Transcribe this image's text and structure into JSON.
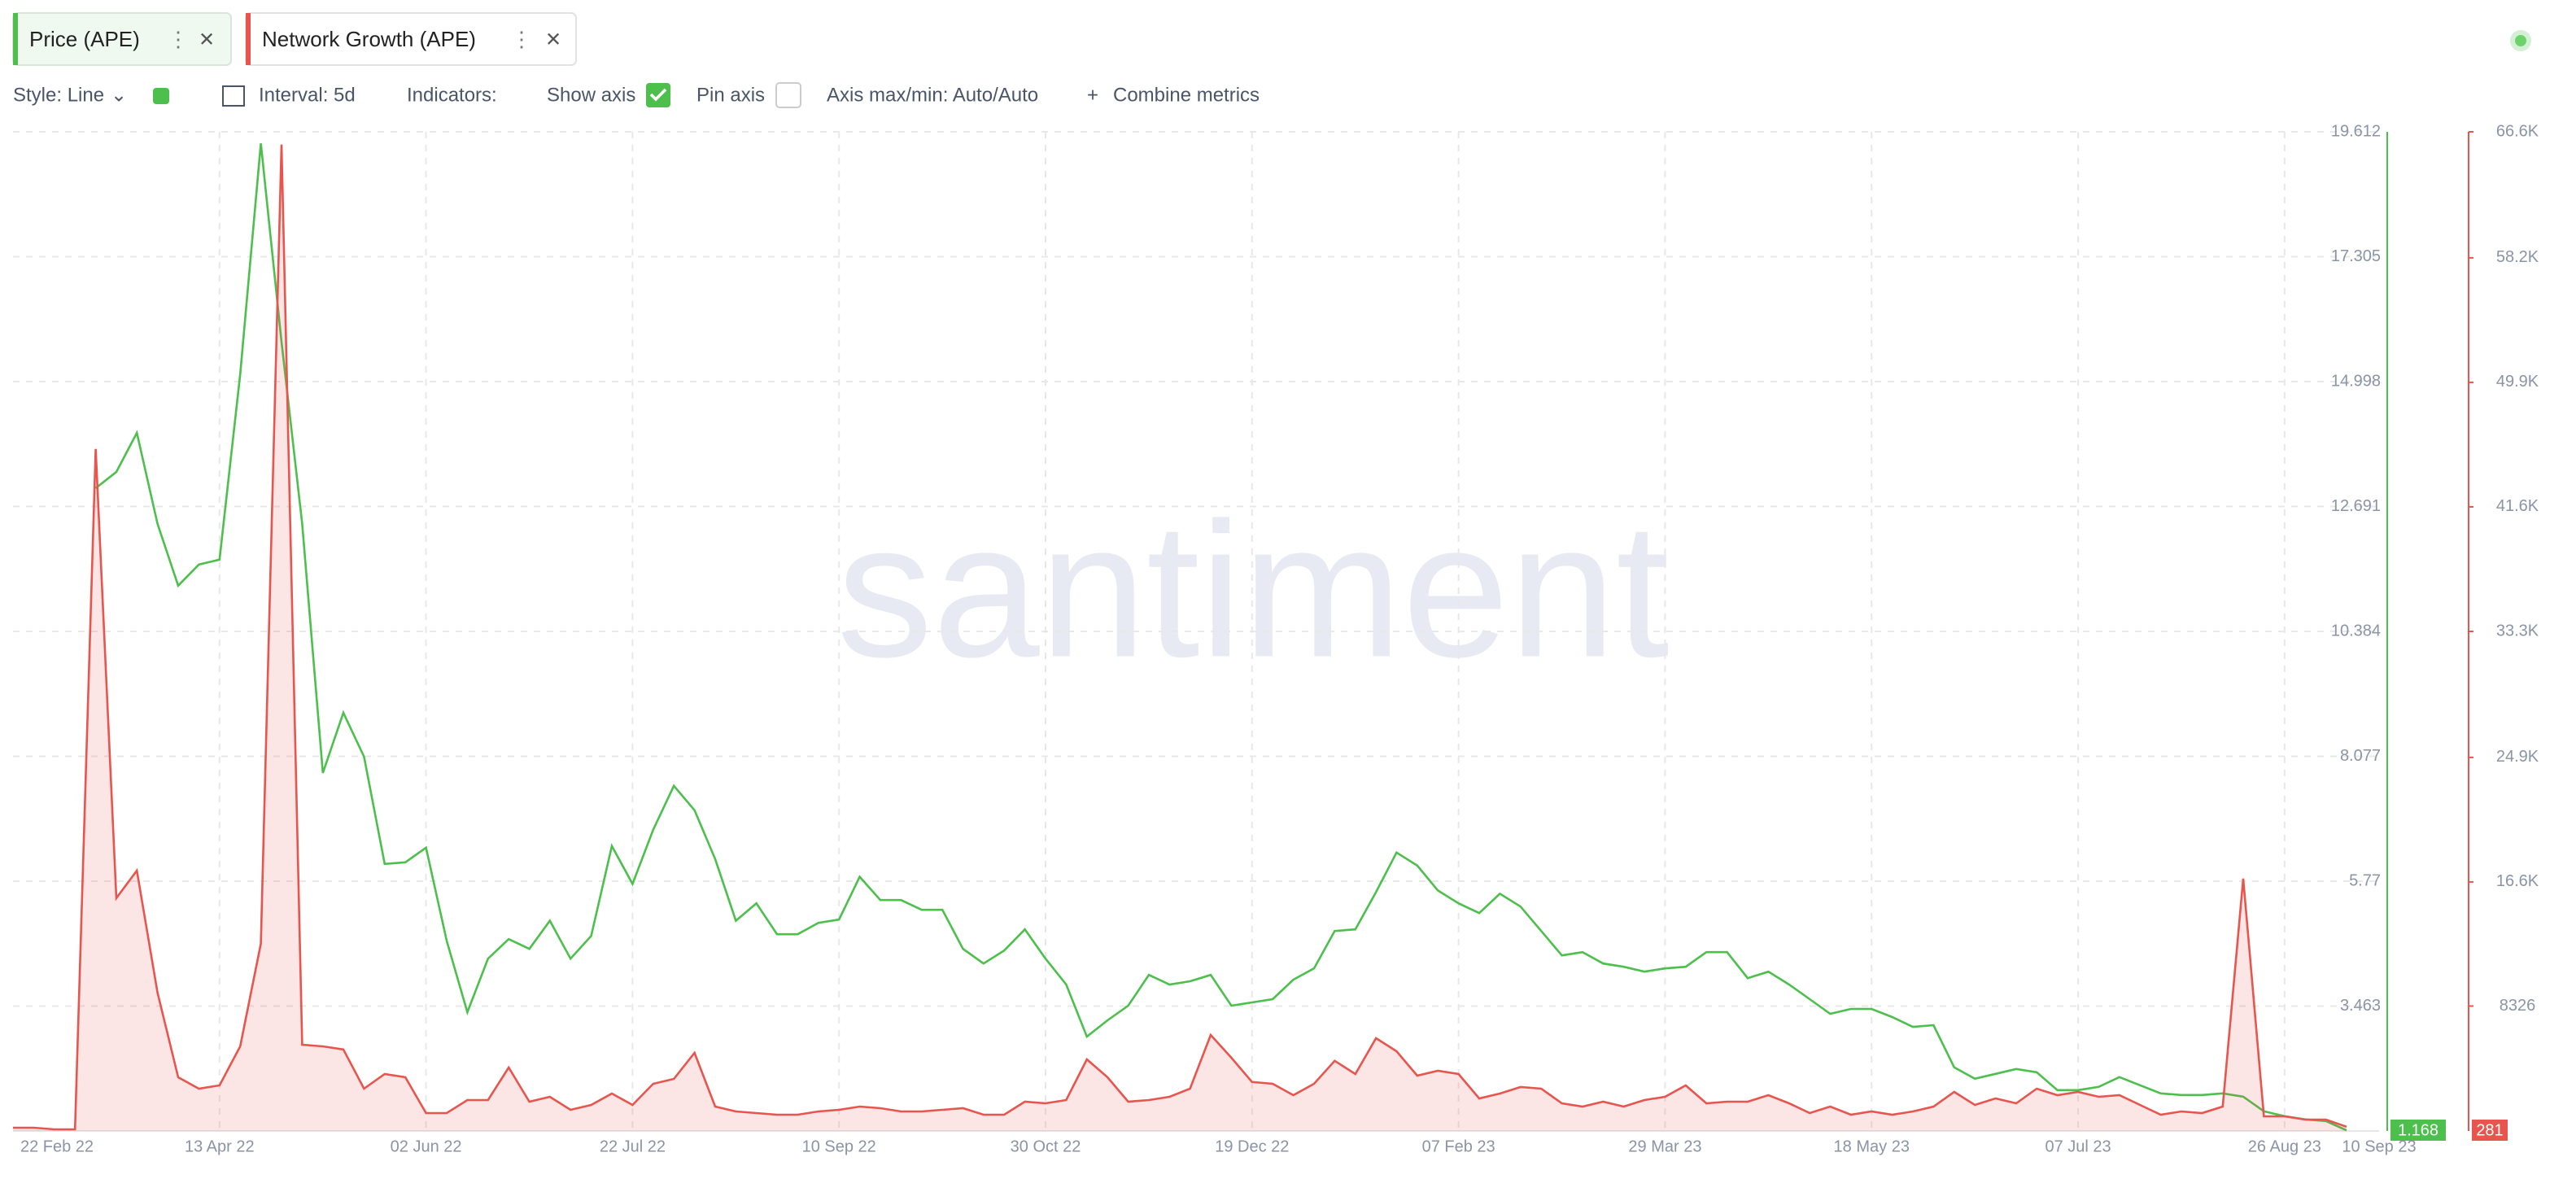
{
  "ui": {
    "style": "Style: Line",
    "interval": "Interval: 5d",
    "indicators": "Indicators:",
    "show_axis": "Show axis",
    "pin_axis": "Pin axis",
    "axis_minmax": "Axis max/min: Auto/Auto",
    "combine": "Combine metrics",
    "watermark": "santiment"
  },
  "chart_data": {
    "type": "line",
    "x": [
      "22 Feb 22",
      "27 Feb 22",
      "04 Mar 22",
      "09 Mar 22",
      "14 Mar 22",
      "19 Mar 22",
      "24 Mar 22",
      "29 Mar 22",
      "03 Apr 22",
      "08 Apr 22",
      "13 Apr 22",
      "18 Apr 22",
      "23 Apr 22",
      "28 Apr 22",
      "03 May 22",
      "08 May 22",
      "13 May 22",
      "18 May 22",
      "23 May 22",
      "28 May 22",
      "02 Jun 22",
      "07 Jun 22",
      "12 Jun 22",
      "17 Jun 22",
      "22 Jun 22",
      "27 Jun 22",
      "02 Jul 22",
      "07 Jul 22",
      "12 Jul 22",
      "17 Jul 22",
      "22 Jul 22",
      "27 Jul 22",
      "01 Aug 22",
      "06 Aug 22",
      "11 Aug 22",
      "16 Aug 22",
      "21 Aug 22",
      "26 Aug 22",
      "31 Aug 22",
      "05 Sep 22",
      "10 Sep 22",
      "15 Sep 22",
      "20 Sep 22",
      "25 Sep 22",
      "30 Sep 22",
      "05 Oct 22",
      "10 Oct 22",
      "15 Oct 22",
      "20 Oct 22",
      "25 Oct 22",
      "30 Oct 22",
      "04 Nov 22",
      "09 Nov 22",
      "14 Nov 22",
      "19 Nov 22",
      "24 Nov 22",
      "29 Nov 22",
      "04 Dec 22",
      "09 Dec 22",
      "14 Dec 22",
      "19 Dec 22",
      "24 Dec 22",
      "29 Dec 22",
      "03 Jan 23",
      "08 Jan 23",
      "13 Jan 23",
      "18 Jan 23",
      "23 Jan 23",
      "28 Jan 23",
      "02 Feb 23",
      "07 Feb 23",
      "12 Feb 23",
      "17 Feb 23",
      "22 Feb 23",
      "27 Feb 23",
      "04 Mar 23",
      "09 Mar 23",
      "14 Mar 23",
      "19 Mar 23",
      "24 Mar 23",
      "29 Mar 23",
      "03 Apr 23",
      "08 Apr 23",
      "13 Apr 23",
      "18 Apr 23",
      "23 Apr 23",
      "28 Apr 23",
      "03 May 23",
      "08 May 23",
      "13 May 23",
      "18 May 23",
      "23 May 23",
      "28 May 23",
      "02 Jun 23",
      "07 Jun 23",
      "12 Jun 23",
      "17 Jun 23",
      "22 Jun 23",
      "27 Jun 23",
      "02 Jul 23",
      "07 Jul 23",
      "12 Jul 23",
      "17 Jul 23",
      "22 Jul 23",
      "27 Jul 23",
      "01 Aug 23",
      "06 Aug 23",
      "11 Aug 23",
      "16 Aug 23",
      "21 Aug 23",
      "26 Aug 23",
      "31 Aug 23",
      "05 Sep 23",
      "10 Sep 23"
    ],
    "series": [
      {
        "name": "Price (APE)",
        "color": "#4cbf4c",
        "axis": "y",
        "values": [
          null,
          null,
          null,
          null,
          13.03,
          13.33,
          14.05,
          12.37,
          11.23,
          11.62,
          11.71,
          15.13,
          19.4,
          15.73,
          12.37,
          7.77,
          8.88,
          8.07,
          6.09,
          6.12,
          6.39,
          4.67,
          3.35,
          4.34,
          4.7,
          4.52,
          5.04,
          4.34,
          4.76,
          6.42,
          5.72,
          6.72,
          7.53,
          7.08,
          6.18,
          5.04,
          5.36,
          4.79,
          4.79,
          5.0,
          5.06,
          5.85,
          5.42,
          5.42,
          5.24,
          5.24,
          4.52,
          4.25,
          4.49,
          4.88,
          4.34,
          3.86,
          2.9,
          3.2,
          3.47,
          4.04,
          3.86,
          3.92,
          4.04,
          3.47,
          3.53,
          3.59,
          3.95,
          4.16,
          4.85,
          4.88,
          5.57,
          6.3,
          6.06,
          5.6,
          5.36,
          5.18,
          5.54,
          5.3,
          4.85,
          4.4,
          4.46,
          4.25,
          4.19,
          4.1,
          4.16,
          4.19,
          4.46,
          4.46,
          3.98,
          4.1,
          3.86,
          3.59,
          3.32,
          3.41,
          3.41,
          3.26,
          3.08,
          3.11,
          2.33,
          2.12,
          2.21,
          2.3,
          2.24,
          1.91,
          1.91,
          1.97,
          2.15,
          2.0,
          1.85,
          1.82,
          1.82,
          1.85,
          1.79,
          1.52,
          1.43,
          1.37,
          1.34,
          1.168
        ]
      },
      {
        "name": "Network Growth (APE)",
        "color": "#e8554e",
        "axis": "y2",
        "values": [
          220,
          220,
          110,
          110,
          45460,
          15520,
          17360,
          9220,
          3580,
          2820,
          3040,
          5640,
          12480,
          65750,
          5750,
          5640,
          5430,
          2820,
          3800,
          3580,
          1190,
          1190,
          2060,
          2060,
          4230,
          1950,
          2280,
          1410,
          1740,
          2500,
          1740,
          3150,
          3470,
          5210,
          1630,
          1300,
          1190,
          1090,
          1090,
          1300,
          1410,
          1630,
          1520,
          1300,
          1300,
          1410,
          1520,
          1090,
          1090,
          1950,
          1840,
          2060,
          4770,
          3580,
          1950,
          2060,
          2280,
          2820,
          6400,
          4880,
          3260,
          3150,
          2390,
          3150,
          4670,
          3800,
          6180,
          5320,
          3690,
          4010,
          3800,
          2170,
          2500,
          2930,
          2820,
          1840,
          1630,
          1950,
          1630,
          2060,
          2280,
          3040,
          1840,
          1950,
          1950,
          2390,
          1840,
          1190,
          1630,
          1090,
          1300,
          1090,
          1300,
          1630,
          2600,
          1740,
          2170,
          1840,
          2820,
          2390,
          2600,
          2280,
          2390,
          1740,
          1090,
          1300,
          1190,
          1630,
          16820,
          980,
          980,
          760,
          760,
          281
        ]
      }
    ],
    "ylim": [
      1.156,
      19.612
    ],
    "yticks": [
      3.463,
      5.77,
      8.077,
      10.384,
      12.691,
      14.998,
      17.305,
      19.612
    ],
    "y2lim": [
      0,
      66600
    ],
    "y2ticks": [
      8326,
      {
        "value": 16600,
        "label": "16.6K"
      },
      {
        "value": 24900,
        "label": "24.9K"
      },
      {
        "value": 33300,
        "label": "33.3K"
      },
      {
        "value": 41600,
        "label": "41.6K"
      },
      {
        "value": 49900,
        "label": "49.9K"
      },
      {
        "value": 58200,
        "label": "58.2K"
      },
      {
        "value": 66600,
        "label": "66.6K"
      }
    ],
    "grid": true,
    "area_series": 1
  }
}
